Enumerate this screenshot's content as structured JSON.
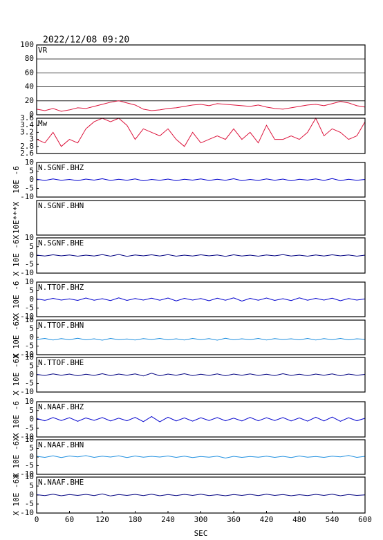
{
  "title": "2022/12/08 09:20",
  "chart_data": [
    {
      "type": "line",
      "title": "VR",
      "color": "#dc143c",
      "xlim": [
        0,
        600
      ],
      "ylim": [
        0,
        100
      ],
      "yticks": [
        0,
        20,
        40,
        60,
        80,
        100
      ],
      "grid": true,
      "x": [
        0,
        15,
        30,
        45,
        60,
        75,
        90,
        105,
        120,
        135,
        150,
        165,
        180,
        195,
        210,
        225,
        240,
        255,
        270,
        285,
        300,
        315,
        330,
        345,
        360,
        375,
        390,
        405,
        420,
        435,
        450,
        465,
        480,
        495,
        510,
        525,
        540,
        555,
        570,
        585,
        600
      ],
      "values": [
        8,
        6,
        9,
        5,
        7,
        10,
        9,
        12,
        15,
        18,
        20,
        17,
        14,
        8,
        6,
        7,
        9,
        10,
        12,
        14,
        15,
        13,
        16,
        15,
        14,
        13,
        12,
        14,
        11,
        9,
        8,
        10,
        12,
        14,
        15,
        13,
        16,
        19,
        17,
        13,
        11
      ]
    },
    {
      "type": "line",
      "title": "Mw",
      "color": "#dc143c",
      "xlim": [
        0,
        600
      ],
      "ylim": [
        2.6,
        3.6
      ],
      "yticks": [
        2.6,
        2.8,
        3,
        3.2,
        3.4,
        3.6
      ],
      "x": [
        0,
        15,
        30,
        45,
        60,
        75,
        90,
        105,
        120,
        135,
        150,
        165,
        180,
        195,
        210,
        225,
        240,
        255,
        270,
        285,
        300,
        315,
        330,
        345,
        360,
        375,
        390,
        405,
        420,
        435,
        450,
        465,
        480,
        495,
        510,
        525,
        540,
        555,
        570,
        585,
        600
      ],
      "values": [
        3.0,
        2.9,
        3.2,
        2.8,
        3.0,
        2.9,
        3.3,
        3.5,
        3.6,
        3.5,
        3.6,
        3.4,
        3.0,
        3.3,
        3.2,
        3.1,
        3.3,
        3.0,
        2.8,
        3.2,
        2.9,
        3.0,
        3.1,
        3.0,
        3.3,
        3.0,
        3.2,
        2.9,
        3.4,
        3.0,
        3.0,
        3.1,
        3.0,
        3.2,
        3.6,
        3.1,
        3.3,
        3.2,
        3.0,
        3.1,
        3.5
      ]
    },
    {
      "type": "line",
      "title": "N.SGNF.BHZ",
      "ylabel": "10E -6",
      "color": "#0000cd",
      "xlim": [
        0,
        600
      ],
      "ylim": [
        -10,
        10
      ],
      "yticks": [
        -10,
        -5,
        0,
        5,
        10
      ],
      "x": [
        0,
        15,
        30,
        45,
        60,
        75,
        90,
        105,
        120,
        135,
        150,
        165,
        180,
        195,
        210,
        225,
        240,
        255,
        270,
        285,
        300,
        315,
        330,
        345,
        360,
        375,
        390,
        405,
        420,
        435,
        450,
        465,
        480,
        495,
        510,
        525,
        540,
        555,
        570,
        585,
        600
      ],
      "values": [
        0.3,
        -0.4,
        0.5,
        -0.3,
        0.2,
        -0.5,
        0.4,
        -0.2,
        0.6,
        -0.4,
        0.3,
        -0.3,
        0.5,
        -0.6,
        0.2,
        -0.3,
        0.4,
        -0.5,
        0.3,
        -0.2,
        0.5,
        -0.4,
        0.3,
        -0.3,
        0.6,
        -0.5,
        0.2,
        -0.4,
        0.5,
        -0.3,
        0.4,
        -0.6,
        0.3,
        -0.2,
        0.5,
        -0.4,
        0.7,
        -0.5,
        0.3,
        -0.3,
        0.2
      ]
    },
    {
      "type": "line",
      "title": "N.SGNF.BHN",
      "ylabel": "10E***X",
      "xlim": [
        0,
        600
      ]
    },
    {
      "type": "line",
      "title": "N.SGNF.BHE",
      "ylabel": "X 10E -6X",
      "color": "#000080",
      "xlim": [
        0,
        600
      ],
      "ylim": [
        -10,
        10
      ],
      "yticks": [
        -10,
        -5,
        0,
        5,
        10
      ],
      "x": [
        0,
        15,
        30,
        45,
        60,
        75,
        90,
        105,
        120,
        135,
        150,
        165,
        180,
        195,
        210,
        225,
        240,
        255,
        270,
        285,
        300,
        315,
        330,
        345,
        360,
        375,
        390,
        405,
        420,
        435,
        450,
        465,
        480,
        495,
        510,
        525,
        540,
        555,
        570,
        585,
        600
      ],
      "values": [
        0.2,
        -0.3,
        0.4,
        -0.2,
        0.3,
        -0.4,
        0.2,
        -0.3,
        0.5,
        -0.4,
        0.6,
        -0.5,
        0.3,
        -0.2,
        0.4,
        -0.3,
        0.5,
        -0.4,
        0.2,
        -0.3,
        0.4,
        -0.2,
        0.3,
        -0.5,
        0.4,
        -0.3,
        0.2,
        -0.4,
        0.3,
        -0.2,
        0.5,
        -0.3,
        0.2,
        -0.4,
        0.3,
        -0.3,
        0.4,
        -0.2,
        0.3,
        -0.4,
        0.2
      ]
    },
    {
      "type": "line",
      "title": "N.TTOF.BHZ",
      "ylabel": "X 10E -6",
      "color": "#0000cd",
      "xlim": [
        0,
        600
      ],
      "ylim": [
        -10,
        10
      ],
      "yticks": [
        -10,
        -5,
        0,
        5,
        10
      ],
      "x": [
        0,
        15,
        30,
        45,
        60,
        75,
        90,
        105,
        120,
        135,
        150,
        165,
        180,
        195,
        210,
        225,
        240,
        255,
        270,
        285,
        300,
        315,
        330,
        345,
        360,
        375,
        390,
        405,
        420,
        435,
        450,
        465,
        480,
        495,
        510,
        525,
        540,
        555,
        570,
        585,
        600
      ],
      "values": [
        0.3,
        -0.5,
        0.6,
        -0.4,
        0.3,
        -0.6,
        0.8,
        -0.5,
        0.4,
        -0.7,
        0.9,
        -0.6,
        0.5,
        -0.4,
        0.7,
        -0.5,
        0.8,
        -0.9,
        0.6,
        -0.4,
        0.5,
        -0.8,
        0.7,
        -0.5,
        0.9,
        -1.0,
        0.6,
        -0.5,
        0.8,
        -0.6,
        0.4,
        -0.7,
        0.9,
        -0.5,
        0.6,
        -0.4,
        0.7,
        -0.8,
        0.5,
        -0.4,
        0.3
      ]
    },
    {
      "type": "line",
      "title": "N.TTOF.BHN",
      "ylabel": "X 10E -6X",
      "color": "#1e8fe0",
      "xlim": [
        0,
        600
      ],
      "ylim": [
        -10,
        10
      ],
      "yticks": [
        -10,
        -5,
        0,
        5,
        10
      ],
      "x": [
        0,
        15,
        30,
        45,
        60,
        75,
        90,
        105,
        120,
        135,
        150,
        165,
        180,
        195,
        210,
        225,
        240,
        255,
        270,
        285,
        300,
        315,
        330,
        345,
        360,
        375,
        390,
        405,
        420,
        435,
        450,
        465,
        480,
        495,
        510,
        525,
        540,
        555,
        570,
        585,
        600
      ],
      "values": [
        -1.2,
        -0.6,
        -1.5,
        -0.7,
        -1.3,
        -0.5,
        -1.4,
        -0.8,
        -1.6,
        -0.6,
        -1.3,
        -0.9,
        -1.5,
        -0.7,
        -1.2,
        -0.6,
        -1.4,
        -0.8,
        -1.5,
        -0.6,
        -1.3,
        -0.7,
        -1.6,
        -0.5,
        -1.4,
        -0.8,
        -1.3,
        -0.6,
        -1.5,
        -0.7,
        -1.2,
        -0.8,
        -1.4,
        -0.6,
        -1.5,
        -0.7,
        -1.3,
        -0.6,
        -1.4,
        -0.8,
        -1.1
      ]
    },
    {
      "type": "line",
      "title": "N.TTOF.BHE",
      "ylabel": "X 10E -6X",
      "color": "#000080",
      "xlim": [
        0,
        600
      ],
      "ylim": [
        -10,
        10
      ],
      "yticks": [
        -10,
        -5,
        0,
        5,
        10
      ],
      "x": [
        0,
        15,
        30,
        45,
        60,
        75,
        90,
        105,
        120,
        135,
        150,
        165,
        180,
        195,
        210,
        225,
        240,
        255,
        270,
        285,
        300,
        315,
        330,
        345,
        360,
        375,
        390,
        405,
        420,
        435,
        450,
        465,
        480,
        495,
        510,
        525,
        540,
        555,
        570,
        585,
        600
      ],
      "values": [
        0.2,
        -0.4,
        0.5,
        -0.3,
        0.4,
        -0.6,
        0.3,
        -0.4,
        0.6,
        -0.5,
        0.4,
        -0.3,
        0.5,
        -0.7,
        0.9,
        -0.6,
        0.4,
        -0.3,
        0.6,
        -0.5,
        0.3,
        -0.4,
        0.5,
        -0.6,
        0.4,
        -0.3,
        0.5,
        -0.4,
        0.3,
        -0.5,
        0.6,
        -0.4,
        0.3,
        -0.5,
        0.4,
        -0.3,
        0.5,
        -0.6,
        0.4,
        -0.3,
        0.2
      ]
    },
    {
      "type": "line",
      "title": "N.NAAF.BHZ",
      "ylabel": "X 10E -6",
      "color": "#0000cd",
      "xlim": [
        0,
        600
      ],
      "ylim": [
        -10,
        10
      ],
      "yticks": [
        -10,
        -5,
        0,
        5,
        10
      ],
      "x": [
        0,
        15,
        30,
        45,
        60,
        75,
        90,
        105,
        120,
        135,
        150,
        165,
        180,
        195,
        210,
        225,
        240,
        255,
        270,
        285,
        300,
        315,
        330,
        345,
        360,
        375,
        390,
        405,
        420,
        435,
        450,
        465,
        480,
        495,
        510,
        525,
        540,
        555,
        570,
        585,
        600
      ],
      "values": [
        0.5,
        -0.8,
        1.0,
        -0.7,
        0.9,
        -1.1,
        0.8,
        -0.6,
        1.0,
        -0.9,
        0.7,
        -0.8,
        1.1,
        -1.3,
        1.6,
        -1.4,
        1.2,
        -0.9,
        0.8,
        -1.0,
        0.9,
        -0.7,
        1.0,
        -0.8,
        0.7,
        -0.9,
        1.1,
        -0.8,
        0.9,
        -0.7,
        1.0,
        -0.9,
        0.8,
        -1.0,
        1.2,
        -0.9,
        1.3,
        -1.1,
        0.9,
        -0.8,
        0.6
      ]
    },
    {
      "type": "line",
      "title": "N.NAAF.BHN",
      "ylabel": "X 10E -6X",
      "color": "#1e8fe0",
      "xlim": [
        0,
        600
      ],
      "ylim": [
        -10,
        10
      ],
      "yticks": [
        -10,
        -5,
        0,
        5,
        10
      ],
      "x": [
        0,
        15,
        30,
        45,
        60,
        75,
        90,
        105,
        120,
        135,
        150,
        165,
        180,
        195,
        210,
        225,
        240,
        255,
        270,
        285,
        300,
        315,
        330,
        345,
        360,
        375,
        390,
        405,
        420,
        435,
        450,
        465,
        480,
        495,
        510,
        525,
        540,
        555,
        570,
        585,
        600
      ],
      "values": [
        0.4,
        -0.2,
        0.7,
        -0.3,
        0.6,
        0.1,
        0.8,
        -0.2,
        0.5,
        0.0,
        0.7,
        -0.3,
        0.6,
        -0.1,
        0.4,
        0.0,
        0.6,
        -0.2,
        0.5,
        -0.3,
        0.3,
        -0.1,
        0.5,
        -0.6,
        0.4,
        -0.2,
        0.3,
        -0.1,
        0.5,
        -0.2,
        0.4,
        -0.3,
        0.6,
        -0.1,
        0.3,
        -0.2,
        0.5,
        0.1,
        0.9,
        -0.2,
        0.4
      ]
    },
    {
      "type": "line",
      "title": "N.NAAF.BHE",
      "ylabel": "X 10E -6X",
      "color": "#000080",
      "xlim": [
        0,
        600
      ],
      "ylim": [
        -10,
        10
      ],
      "yticks": [
        -10,
        -5,
        0,
        5,
        10
      ],
      "xticks": [
        0,
        60,
        120,
        180,
        240,
        300,
        360,
        420,
        480,
        540,
        600
      ],
      "xlabel": "SEC",
      "x": [
        0,
        15,
        30,
        45,
        60,
        75,
        90,
        105,
        120,
        135,
        150,
        165,
        180,
        195,
        210,
        225,
        240,
        255,
        270,
        285,
        300,
        315,
        330,
        345,
        360,
        375,
        390,
        405,
        420,
        435,
        450,
        465,
        480,
        495,
        510,
        525,
        540,
        555,
        570,
        585,
        600
      ],
      "values": [
        0.2,
        -0.3,
        0.5,
        -0.4,
        0.3,
        -0.2,
        0.4,
        -0.3,
        0.6,
        -0.5,
        0.3,
        -0.2,
        0.4,
        -0.3,
        0.5,
        -0.4,
        0.3,
        -0.3,
        0.4,
        -0.2,
        0.5,
        -0.3,
        0.2,
        -0.4,
        0.3,
        -0.2,
        0.4,
        -0.3,
        0.5,
        -0.2,
        0.3,
        -0.4,
        0.2,
        -0.3,
        0.4,
        -0.2,
        0.5,
        -0.4,
        0.3,
        -0.2,
        0.1
      ]
    }
  ]
}
